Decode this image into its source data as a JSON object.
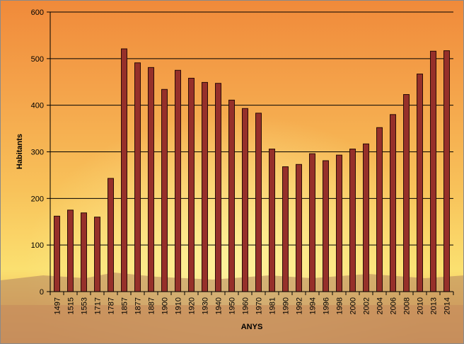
{
  "chart_data": {
    "type": "bar",
    "title": "",
    "xlabel": "ANYS",
    "ylabel": "Habitants",
    "ylim": [
      0,
      600
    ],
    "yticks": [
      0,
      100,
      200,
      300,
      400,
      500,
      600
    ],
    "grid": true,
    "legend": "none",
    "categories": [
      "1497",
      "1515",
      "1553",
      "1717",
      "1787",
      "1857",
      "1877",
      "1887",
      "1900",
      "1910",
      "1920",
      "1930",
      "1940",
      "1950",
      "1960",
      "1970",
      "1981",
      "1990",
      "1992",
      "1994",
      "1996",
      "1998",
      "2000",
      "2002",
      "2004",
      "2006",
      "2008",
      "2010",
      "2013",
      "2014"
    ],
    "values": [
      162,
      175,
      169,
      160,
      243,
      521,
      491,
      481,
      434,
      475,
      458,
      449,
      447,
      411,
      393,
      383,
      306,
      268,
      273,
      296,
      281,
      293,
      306,
      317,
      352,
      380,
      423,
      467,
      516,
      517
    ],
    "colors": {
      "bar_fill": "#96302a",
      "bar_stroke": "#2a0a06",
      "grid": "#000000"
    }
  }
}
